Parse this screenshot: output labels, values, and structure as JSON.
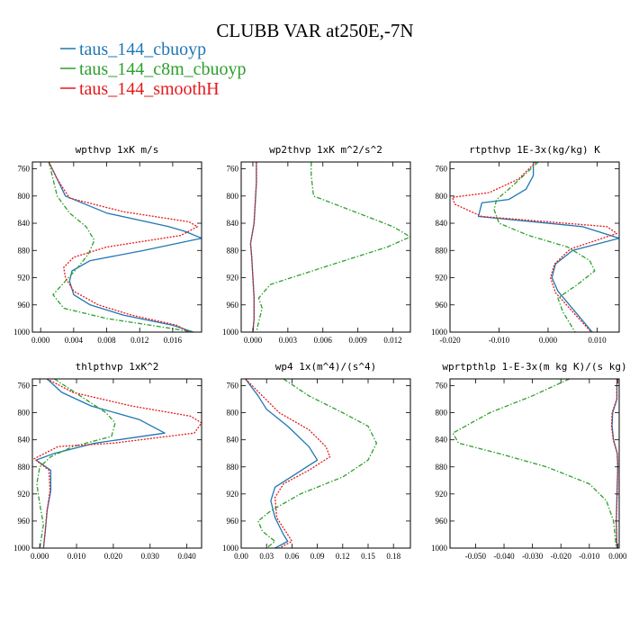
{
  "title": "CLUBB VAR at250E,-7N",
  "legend": [
    {
      "label": "taus_144_cbuoyp",
      "color": "#1f77b4",
      "dash": "solid"
    },
    {
      "label": "taus_144_c8m_cbuoyp",
      "color": "#2ca02c",
      "dash": "dashdot"
    },
    {
      "label": "taus_144_smoothH",
      "color": "#e31a1c",
      "dash": "dotted"
    }
  ],
  "chart_data": [
    {
      "type": "line",
      "title": "wpthvp  1xK m/s",
      "xlim": [
        -0.001,
        0.0195
      ],
      "ylim": [
        750,
        1000
      ],
      "y_inverted": true,
      "xticks": [
        "0.000",
        "0.004",
        "0.008",
        "0.012",
        "0.016"
      ],
      "xtick_values": [
        0,
        0.004,
        0.008,
        0.012,
        0.016
      ],
      "yticks": [
        760,
        800,
        840,
        880,
        920,
        960,
        1000
      ],
      "series": [
        {
          "name": "taus_144_cbuoyp",
          "color": "#1f77b4",
          "dash": "solid",
          "x": [
            0.001,
            0.0018,
            0.003,
            0.008,
            0.0155,
            0.0175,
            0.0195,
            0.0125,
            0.006,
            0.0038,
            0.0035,
            0.004,
            0.006,
            0.01,
            0.016,
            0.0185
          ],
          "y": [
            750,
            770,
            800,
            825,
            845,
            852,
            862,
            880,
            895,
            910,
            925,
            945,
            960,
            975,
            990,
            1000
          ]
        },
        {
          "name": "taus_144_c8m_cbuoyp",
          "color": "#2ca02c",
          "dash": "dashdot",
          "x": [
            0.001,
            0.0015,
            0.002,
            0.0035,
            0.0055,
            0.0065,
            0.0058,
            0.0045,
            0.003,
            0.0015,
            0.0028,
            0.008,
            0.015,
            0.0185
          ],
          "y": [
            750,
            775,
            800,
            825,
            845,
            865,
            885,
            905,
            925,
            945,
            965,
            980,
            993,
            1000
          ]
        },
        {
          "name": "taus_144_smoothH",
          "color": "#e31a1c",
          "dash": "dotted",
          "x": [
            0.001,
            0.002,
            0.0035,
            0.01,
            0.018,
            0.019,
            0.017,
            0.008,
            0.004,
            0.0028,
            0.003,
            0.004,
            0.007,
            0.011,
            0.0165,
            0.018
          ],
          "y": [
            750,
            775,
            803,
            823,
            838,
            845,
            858,
            875,
            890,
            905,
            920,
            940,
            960,
            975,
            990,
            1000
          ]
        }
      ]
    },
    {
      "type": "line",
      "title": "wp2thvp  1xK m^2/s^2",
      "xlim": [
        -0.001,
        0.0135
      ],
      "ylim": [
        750,
        1000
      ],
      "y_inverted": true,
      "xticks": [
        "0.000",
        "0.003",
        "0.006",
        "0.009",
        "0.012"
      ],
      "xtick_values": [
        0,
        0.003,
        0.006,
        0.009,
        0.012
      ],
      "yticks": [
        760,
        800,
        840,
        880,
        920,
        960,
        1000
      ],
      "series": [
        {
          "name": "taus_144_cbuoyp",
          "color": "#1f77b4",
          "dash": "solid",
          "x": [
            0.0003,
            0.0003,
            0.0002,
            0.0001,
            -0.0002,
            -0.0001,
            0.0,
            0.0001,
            0.0001,
            0.0
          ],
          "y": [
            750,
            780,
            810,
            840,
            870,
            890,
            920,
            950,
            980,
            1000
          ]
        },
        {
          "name": "taus_144_c8m_cbuoyp",
          "color": "#2ca02c",
          "dash": "dashdot",
          "x": [
            0.005,
            0.005,
            0.0052,
            0.009,
            0.012,
            0.0135,
            0.0115,
            0.006,
            0.0015,
            0.0005,
            0.0008,
            0.0005,
            0.0003
          ],
          "y": [
            750,
            770,
            800,
            825,
            845,
            860,
            875,
            905,
            930,
            950,
            965,
            985,
            1000
          ]
        },
        {
          "name": "taus_144_smoothH",
          "color": "#e31a1c",
          "dash": "dotted",
          "x": [
            0.0003,
            0.0003,
            0.0002,
            0.0001,
            -0.0002,
            -0.0001,
            0.0,
            0.0001,
            0.0001,
            0.0
          ],
          "y": [
            750,
            780,
            810,
            840,
            870,
            890,
            920,
            950,
            980,
            1000
          ]
        }
      ]
    },
    {
      "type": "line",
      "title": "rtpthvp  1E-3x(kg/kg) K",
      "xlim": [
        -0.02,
        0.0145
      ],
      "ylim": [
        750,
        1000
      ],
      "y_inverted": true,
      "xticks": [
        "-0.020",
        "-0.010",
        "0.000",
        "0.010"
      ],
      "xtick_values": [
        -0.02,
        -0.01,
        0.0,
        0.01
      ],
      "yticks": [
        760,
        800,
        840,
        880,
        920,
        960,
        1000
      ],
      "series": [
        {
          "name": "taus_144_cbuoyp",
          "color": "#1f77b4",
          "dash": "solid",
          "x": [
            -0.003,
            -0.003,
            -0.0045,
            -0.008,
            -0.0135,
            -0.0142,
            0.007,
            0.0145,
            0.005,
            0.0015,
            0.0008,
            0.002,
            0.0055,
            0.009
          ],
          "y": [
            750,
            770,
            790,
            805,
            810,
            830,
            845,
            862,
            880,
            900,
            920,
            940,
            970,
            1000
          ]
        },
        {
          "name": "taus_144_c8m_cbuoyp",
          "color": "#2ca02c",
          "dash": "dashdot",
          "x": [
            -0.002,
            -0.005,
            -0.008,
            -0.0105,
            -0.011,
            -0.01,
            -0.004,
            0.004,
            0.0085,
            0.0095,
            0.006,
            0.002,
            0.003,
            0.0055
          ],
          "y": [
            750,
            770,
            790,
            805,
            820,
            840,
            858,
            875,
            895,
            910,
            930,
            950,
            970,
            1000
          ]
        },
        {
          "name": "taus_144_smoothH",
          "color": "#e31a1c",
          "dash": "dotted",
          "x": [
            -0.0025,
            -0.006,
            -0.012,
            -0.0195,
            -0.019,
            -0.0135,
            0.012,
            0.014,
            0.0045,
            0.0013,
            0.0005,
            0.0015,
            0.005,
            0.0088
          ],
          "y": [
            750,
            775,
            795,
            802,
            812,
            830,
            845,
            855,
            878,
            900,
            920,
            942,
            970,
            1000
          ]
        }
      ]
    },
    {
      "type": "line",
      "title": "thlpthvp  1xK^2",
      "xlim": [
        -0.002,
        0.044
      ],
      "ylim": [
        750,
        1000
      ],
      "y_inverted": true,
      "xticks": [
        "0.000",
        "0.010",
        "0.020",
        "0.030",
        "0.040"
      ],
      "xtick_values": [
        0,
        0.01,
        0.02,
        0.03,
        0.04
      ],
      "yticks": [
        760,
        800,
        840,
        880,
        920,
        960,
        1000
      ],
      "series": [
        {
          "name": "taus_144_cbuoyp",
          "color": "#1f77b4",
          "dash": "solid",
          "x": [
            0.002,
            0.006,
            0.014,
            0.027,
            0.034,
            0.015,
            0.004,
            -0.001,
            0.003,
            0.003,
            0.002,
            0.0015,
            0.001
          ],
          "y": [
            750,
            770,
            790,
            810,
            830,
            845,
            860,
            870,
            885,
            915,
            945,
            975,
            1000
          ]
        },
        {
          "name": "taus_144_c8m_cbuoyp",
          "color": "#2ca02c",
          "dash": "dashdot",
          "x": [
            0.004,
            0.011,
            0.018,
            0.0205,
            0.0195,
            0.009,
            0.003,
            0.0,
            -0.0008,
            0.0,
            0.001,
            0.0
          ],
          "y": [
            750,
            775,
            800,
            815,
            835,
            850,
            865,
            880,
            905,
            935,
            965,
            1000
          ]
        },
        {
          "name": "taus_144_smoothH",
          "color": "#e31a1c",
          "dash": "dotted",
          "x": [
            0.002,
            0.009,
            0.025,
            0.041,
            0.044,
            0.042,
            0.02,
            0.005,
            -0.0015,
            0.0025,
            0.0028,
            0.002,
            0.0015,
            0.001
          ],
          "y": [
            750,
            770,
            790,
            805,
            815,
            830,
            845,
            850,
            868,
            885,
            915,
            945,
            975,
            1000
          ]
        }
      ]
    },
    {
      "type": "line",
      "title": "wp4  1x(m^4)/(s^4)",
      "xlim": [
        0,
        0.2
      ],
      "ylim": [
        750,
        1000
      ],
      "y_inverted": true,
      "xticks": [
        "0.00",
        "0.03",
        "0.06",
        "0.09",
        "0.12",
        "0.15",
        "0.18"
      ],
      "xtick_values": [
        0,
        0.03,
        0.06,
        0.09,
        0.12,
        0.15,
        0.18
      ],
      "yticks": [
        760,
        800,
        840,
        880,
        920,
        960,
        1000
      ],
      "series": [
        {
          "name": "taus_144_cbuoyp",
          "color": "#1f77b4",
          "dash": "solid",
          "x": [
            0.005,
            0.02,
            0.03,
            0.055,
            0.08,
            0.09,
            0.065,
            0.04,
            0.035,
            0.04,
            0.05,
            0.055,
            0.04
          ],
          "y": [
            750,
            775,
            795,
            820,
            850,
            870,
            890,
            910,
            930,
            955,
            980,
            990,
            1000
          ]
        },
        {
          "name": "taus_144_c8m_cbuoyp",
          "color": "#2ca02c",
          "dash": "dashdot",
          "x": [
            0.05,
            0.08,
            0.12,
            0.15,
            0.16,
            0.15,
            0.12,
            0.07,
            0.035,
            0.02,
            0.025,
            0.04,
            0.03
          ],
          "y": [
            750,
            775,
            800,
            820,
            845,
            870,
            895,
            920,
            945,
            960,
            975,
            990,
            1000
          ]
        },
        {
          "name": "taus_144_smoothH",
          "color": "#e31a1c",
          "dash": "dotted",
          "x": [
            0.005,
            0.025,
            0.045,
            0.08,
            0.1,
            0.105,
            0.08,
            0.05,
            0.04,
            0.042,
            0.055,
            0.06,
            0.045
          ],
          "y": [
            750,
            775,
            800,
            825,
            850,
            865,
            885,
            905,
            925,
            955,
            980,
            990,
            1000
          ]
        }
      ]
    },
    {
      "type": "line",
      "title": "wprtpthlp  1-E-3x(m kg K)/(s kg)",
      "xlim": [
        -0.059,
        0.0005
      ],
      "ylim": [
        750,
        1000
      ],
      "y_inverted": true,
      "xticks": [
        "-0.050",
        "-0.040",
        "-0.030",
        "-0.020",
        "-0.010",
        "0.000"
      ],
      "xtick_values": [
        -0.05,
        -0.04,
        -0.03,
        -0.02,
        -0.01,
        0.0
      ],
      "yticks": [
        760,
        800,
        840,
        880,
        920,
        960,
        1000
      ],
      "series": [
        {
          "name": "taus_144_cbuoyp",
          "color": "#1f77b4",
          "dash": "solid",
          "x": [
            -0.0003,
            -0.0003,
            -0.0018,
            -0.002,
            -0.0015,
            -0.0002,
            0.0,
            -0.0003,
            -0.0005,
            -0.0003
          ],
          "y": [
            750,
            780,
            800,
            820,
            840,
            860,
            880,
            920,
            960,
            1000
          ]
        },
        {
          "name": "taus_144_c8m_cbuoyp",
          "color": "#2ca02c",
          "dash": "dashdot",
          "x": [
            -0.017,
            -0.03,
            -0.045,
            -0.058,
            -0.056,
            -0.042,
            -0.025,
            -0.01,
            -0.004,
            -0.0015,
            -0.0005
          ],
          "y": [
            750,
            775,
            800,
            830,
            845,
            860,
            880,
            905,
            930,
            960,
            1000
          ]
        },
        {
          "name": "taus_144_smoothH",
          "color": "#e31a1c",
          "dash": "dotted",
          "x": [
            -0.0003,
            -0.0004,
            -0.002,
            -0.0022,
            -0.0016,
            -0.0002,
            0.0,
            -0.0002,
            -0.0005,
            -0.0003
          ],
          "y": [
            750,
            780,
            800,
            820,
            840,
            860,
            880,
            920,
            960,
            1000
          ]
        }
      ]
    }
  ]
}
